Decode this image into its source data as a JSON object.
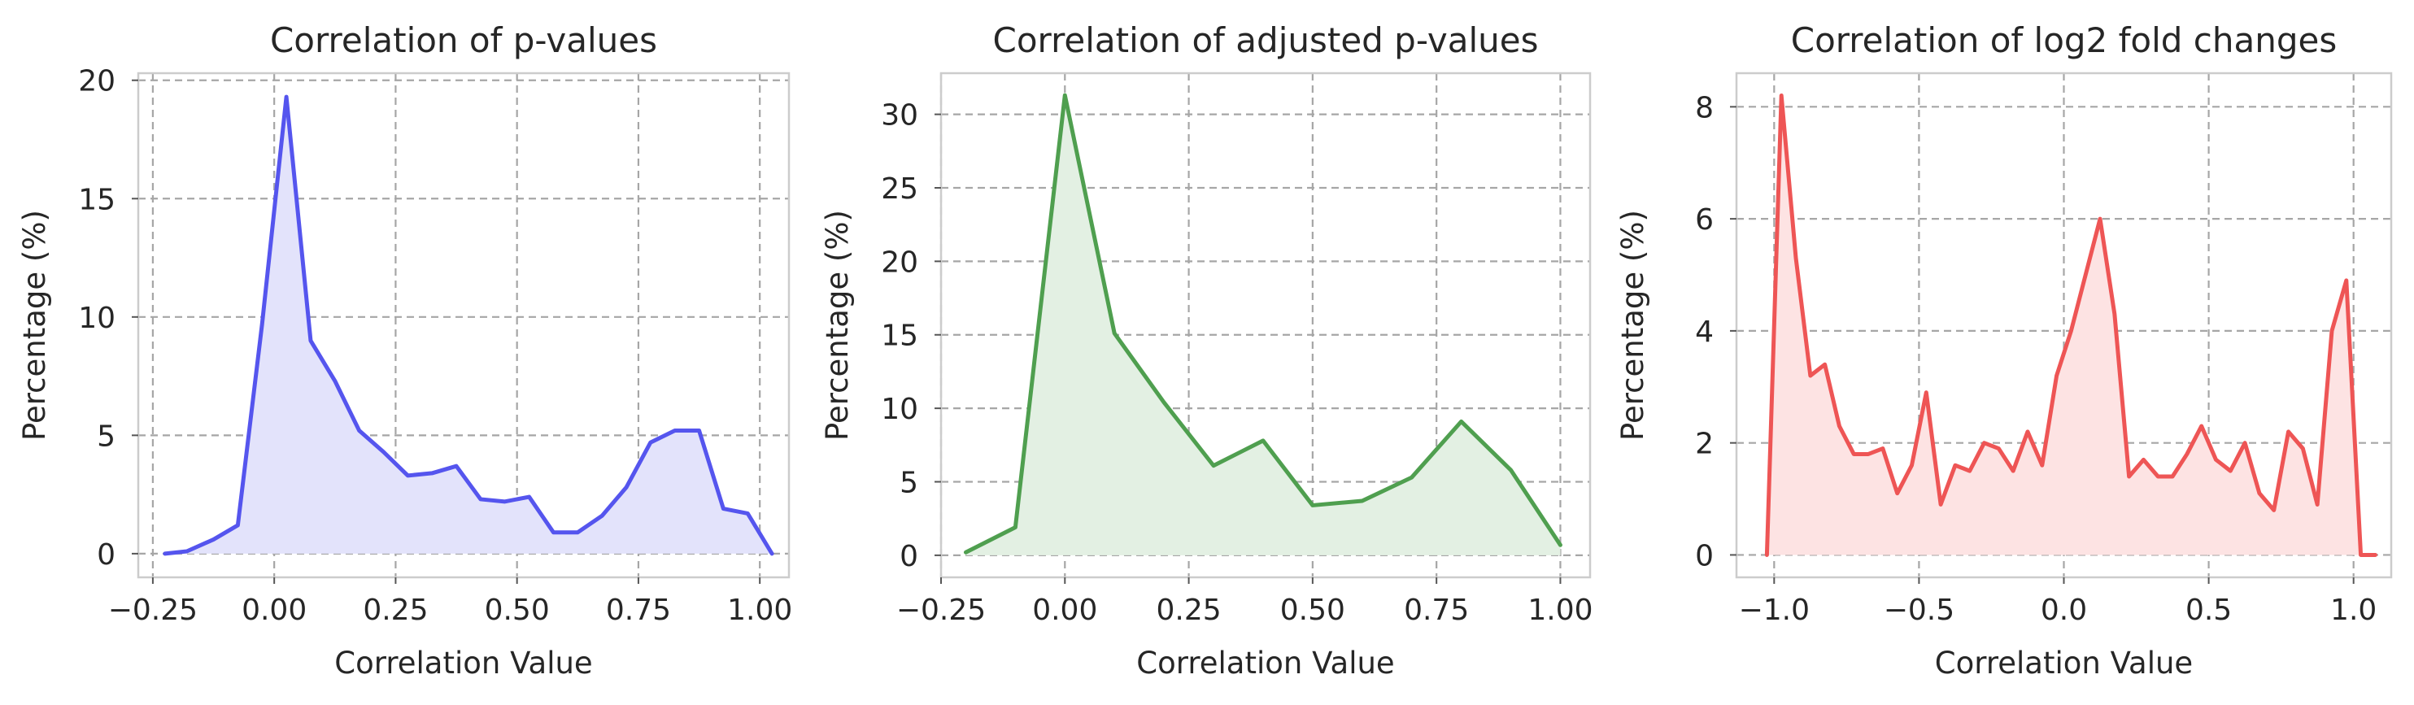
{
  "chart_data": [
    {
      "type": "area",
      "title": "Correlation of p-values",
      "xlabel": "Correlation Value",
      "ylabel": "Percentage (%)",
      "xlim": [
        -0.28,
        1.06
      ],
      "ylim": [
        -1.0,
        20.3
      ],
      "xticks": [
        -0.25,
        0.0,
        0.25,
        0.5,
        0.75,
        1.0
      ],
      "xtick_labels": [
        "−0.25",
        "0.00",
        "0.25",
        "0.50",
        "0.75",
        "1.00"
      ],
      "yticks": [
        0,
        5,
        10,
        15,
        20
      ],
      "ytick_labels": [
        "0",
        "5",
        "10",
        "15",
        "20"
      ],
      "grid": true,
      "line_color": "#5555ee",
      "fill_color": "#e3e3fb",
      "x": [
        -0.225,
        -0.18,
        -0.125,
        -0.075,
        -0.025,
        0.025,
        0.075,
        0.125,
        0.175,
        0.225,
        0.275,
        0.325,
        0.375,
        0.425,
        0.475,
        0.525,
        0.575,
        0.625,
        0.675,
        0.725,
        0.775,
        0.825,
        0.875,
        0.925,
        0.975,
        1.025
      ],
      "y": [
        0.0,
        0.1,
        0.6,
        1.2,
        9.7,
        19.3,
        9.0,
        7.3,
        5.2,
        4.3,
        3.3,
        3.4,
        3.7,
        2.3,
        2.2,
        2.4,
        0.9,
        0.9,
        1.6,
        2.8,
        4.7,
        5.2,
        5.2,
        1.9,
        1.7,
        0.0
      ]
    },
    {
      "type": "area",
      "title": "Correlation of adjusted p-values",
      "xlabel": "Correlation Value",
      "ylabel": "Percentage (%)",
      "xlim": [
        -0.25,
        1.06
      ],
      "ylim": [
        -1.5,
        32.8
      ],
      "xticks": [
        -0.25,
        0.0,
        0.25,
        0.5,
        0.75,
        1.0
      ],
      "xtick_labels": [
        "−0.25",
        "0.00",
        "0.25",
        "0.50",
        "0.75",
        "1.00"
      ],
      "yticks": [
        0,
        5,
        10,
        15,
        20,
        25,
        30
      ],
      "ytick_labels": [
        "0",
        "5",
        "10",
        "15",
        "20",
        "25",
        "30"
      ],
      "grid": true,
      "line_color": "#4f9f4f",
      "fill_color": "#e3f0e3",
      "x": [
        -0.2,
        -0.1,
        0.0,
        0.1,
        0.2,
        0.3,
        0.4,
        0.5,
        0.6,
        0.7,
        0.8,
        0.9,
        1.0
      ],
      "y": [
        0.2,
        1.9,
        31.3,
        15.1,
        10.4,
        6.1,
        7.8,
        3.4,
        3.7,
        5.3,
        9.1,
        5.8,
        0.7
      ]
    },
    {
      "type": "area",
      "title": "Correlation of log2 fold changes",
      "xlabel": "Correlation Value",
      "ylabel": "Percentage (%)",
      "xlim": [
        -1.13,
        1.13
      ],
      "ylim": [
        -0.4,
        8.6
      ],
      "xticks": [
        -1.0,
        -0.5,
        0.0,
        0.5,
        1.0
      ],
      "xtick_labels": [
        "−1.0",
        "−0.5",
        "0.0",
        "0.5",
        "1.0"
      ],
      "yticks": [
        0,
        2,
        4,
        6,
        8
      ],
      "ytick_labels": [
        "0",
        "2",
        "4",
        "6",
        "8"
      ],
      "grid": true,
      "line_color": "#ee5555",
      "fill_color": "#fde3e3",
      "x": [
        -1.025,
        -0.975,
        -0.925,
        -0.875,
        -0.825,
        -0.775,
        -0.725,
        -0.675,
        -0.625,
        -0.575,
        -0.525,
        -0.475,
        -0.425,
        -0.375,
        -0.325,
        -0.275,
        -0.225,
        -0.175,
        -0.125,
        -0.075,
        -0.025,
        0.025,
        0.075,
        0.125,
        0.175,
        0.225,
        0.275,
        0.325,
        0.375,
        0.425,
        0.475,
        0.525,
        0.575,
        0.625,
        0.675,
        0.725,
        0.775,
        0.825,
        0.875,
        0.925,
        0.975,
        1.025,
        1.075
      ],
      "y": [
        0.0,
        8.2,
        5.3,
        3.2,
        3.4,
        2.3,
        1.8,
        1.8,
        1.9,
        1.1,
        1.6,
        2.9,
        0.9,
        1.6,
        1.5,
        2.0,
        1.9,
        1.5,
        2.2,
        1.6,
        3.2,
        4.0,
        5.0,
        6.0,
        4.3,
        1.4,
        1.7,
        1.4,
        1.4,
        1.8,
        2.3,
        1.7,
        1.5,
        2.0,
        1.1,
        0.8,
        2.2,
        1.9,
        0.9,
        4.0,
        4.9,
        0.0,
        0.0
      ]
    }
  ]
}
